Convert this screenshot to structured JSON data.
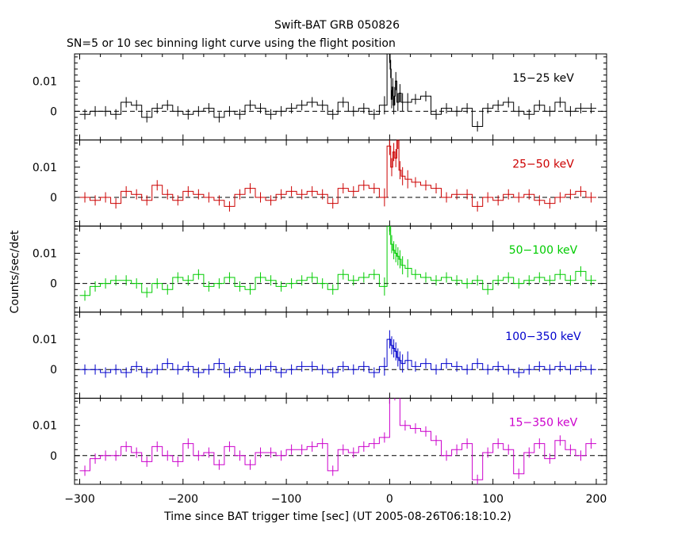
{
  "chart_data": {
    "type": "line",
    "title": "Swift-BAT GRB 050826",
    "subtitle": "SN=5 or 10 sec binning light curve using the flight position",
    "xlabel": "Time since BAT trigger time [sec] (UT 2005-08-26T06:18:10.2)",
    "ylabel": "Counts/sec/det",
    "xlim": [
      -305,
      210
    ],
    "x_ticks": [
      -300,
      -200,
      -100,
      0,
      100,
      200
    ],
    "x_tick_labels": [
      "−300",
      "−200",
      "−100",
      "0",
      "100",
      "200"
    ],
    "ylim": [
      -0.0095,
      0.019
    ],
    "y_ticks": [
      0,
      0.01
    ],
    "y_tick_labels": [
      "0",
      "0.01"
    ],
    "zero_line": "dashed",
    "panels": [
      {
        "name": "15−25 keV",
        "color": "#000000",
        "x": [
          -295,
          -285,
          -275,
          -265,
          -255,
          -245,
          -235,
          -225,
          -215,
          -205,
          -195,
          -185,
          -175,
          -165,
          -155,
          -145,
          -135,
          -125,
          -115,
          -105,
          -95,
          -85,
          -75,
          -65,
          -55,
          -45,
          -35,
          -25,
          -15,
          -5,
          0,
          1,
          2,
          3,
          4,
          5,
          6,
          8,
          10,
          12.5,
          17.5,
          25,
          35,
          45,
          55,
          65,
          75,
          85,
          95,
          105,
          115,
          125,
          135,
          145,
          155,
          165,
          175,
          185,
          195
        ],
        "y": [
          -0.001,
          0,
          0,
          -0.001,
          0.003,
          0.002,
          -0.002,
          0.001,
          0.002,
          0,
          -0.001,
          0,
          0.001,
          -0.002,
          0,
          -0.001,
          0.002,
          0.001,
          -0.001,
          0,
          0.001,
          0.002,
          0.003,
          0.002,
          -0.001,
          0.003,
          0,
          0.001,
          -0.001,
          0.002,
          0.019,
          0.014,
          0.004,
          0.008,
          0.002,
          0.005,
          0.01,
          0.003,
          0.006,
          0.003,
          0.003,
          0.004,
          0.005,
          -0.001,
          0.001,
          0,
          0.001,
          -0.005,
          0.001,
          0.002,
          0.003,
          0,
          -0.001,
          0.002,
          0,
          0.003,
          0,
          0.001,
          0.001
        ]
      },
      {
        "name": "25−50 keV",
        "color": "#cc0000",
        "x": [
          -295,
          -285,
          -275,
          -265,
          -255,
          -245,
          -235,
          -225,
          -215,
          -205,
          -195,
          -185,
          -175,
          -165,
          -155,
          -145,
          -135,
          -125,
          -115,
          -105,
          -95,
          -85,
          -75,
          -65,
          -55,
          -45,
          -35,
          -25,
          -15,
          -5,
          0,
          2,
          4,
          6,
          8,
          10,
          12.5,
          17.5,
          25,
          35,
          45,
          55,
          65,
          75,
          85,
          95,
          105,
          115,
          125,
          135,
          145,
          155,
          165,
          175,
          185,
          195
        ],
        "y": [
          0,
          -0.001,
          0,
          -0.002,
          0.002,
          0.001,
          -0.001,
          0.004,
          0.001,
          -0.001,
          0.002,
          0.001,
          0,
          -0.001,
          -0.003,
          0.001,
          0.003,
          0,
          -0.001,
          0.001,
          0.002,
          0.001,
          0.002,
          0.001,
          -0.002,
          0.003,
          0.002,
          0.004,
          0.003,
          0,
          0.017,
          0.01,
          0.015,
          0.013,
          0.019,
          0.009,
          0.007,
          0.006,
          0.005,
          0.004,
          0.003,
          0,
          0.001,
          0.001,
          -0.003,
          0,
          -0.001,
          0.001,
          0,
          0.001,
          -0.001,
          -0.002,
          0,
          0.001,
          0.002,
          0
        ]
      },
      {
        "name": "50−100 keV",
        "color": "#00cc00",
        "x": [
          -295,
          -285,
          -275,
          -265,
          -255,
          -245,
          -235,
          -225,
          -215,
          -205,
          -195,
          -185,
          -175,
          -165,
          -155,
          -145,
          -135,
          -125,
          -115,
          -105,
          -95,
          -85,
          -75,
          -65,
          -55,
          -45,
          -35,
          -25,
          -15,
          -5,
          0,
          2,
          4,
          6,
          8,
          10,
          12.5,
          17.5,
          25,
          35,
          45,
          55,
          65,
          75,
          85,
          95,
          105,
          115,
          125,
          135,
          145,
          155,
          165,
          175,
          185,
          195
        ],
        "y": [
          -0.004,
          -0.001,
          0,
          0.001,
          0.001,
          0,
          -0.003,
          0,
          -0.002,
          0.002,
          0.001,
          0.003,
          -0.001,
          0,
          0.002,
          -0.001,
          -0.002,
          0.002,
          0.001,
          -0.001,
          0,
          0.001,
          0.002,
          0,
          -0.002,
          0.003,
          0.001,
          0.002,
          0.003,
          -0.001,
          0.019,
          0.013,
          0.011,
          0.01,
          0.009,
          0.008,
          0.006,
          0.005,
          0.003,
          0.002,
          0.001,
          0.002,
          0.001,
          0,
          0.001,
          -0.002,
          0.001,
          0.002,
          0,
          0.001,
          0.002,
          0.001,
          0.003,
          0.001,
          0.004,
          0.001
        ]
      },
      {
        "name": "100−350 keV",
        "color": "#0000cc",
        "x": [
          -295,
          -285,
          -275,
          -265,
          -255,
          -245,
          -235,
          -225,
          -215,
          -205,
          -195,
          -185,
          -175,
          -165,
          -155,
          -145,
          -135,
          -125,
          -115,
          -105,
          -95,
          -85,
          -75,
          -65,
          -55,
          -45,
          -35,
          -25,
          -15,
          -5,
          0,
          2,
          4,
          6,
          8,
          10,
          12.5,
          17.5,
          25,
          35,
          45,
          55,
          65,
          75,
          85,
          95,
          105,
          115,
          125,
          135,
          145,
          155,
          165,
          175,
          185,
          195
        ],
        "y": [
          0,
          0,
          -0.001,
          0,
          -0.001,
          0.001,
          -0.001,
          0,
          0.002,
          0,
          0.001,
          -0.001,
          0,
          0.002,
          -0.001,
          0.001,
          -0.001,
          0,
          0.001,
          -0.001,
          0,
          0.001,
          0.001,
          0,
          -0.001,
          0.001,
          0,
          0.001,
          -0.001,
          0.001,
          0.01,
          0.008,
          0.007,
          0.006,
          0.004,
          0.003,
          0.002,
          0.003,
          0.001,
          0.002,
          0,
          0.002,
          0.001,
          0,
          0.002,
          0,
          0.001,
          0,
          -0.001,
          0,
          0.001,
          0,
          0.001,
          0,
          0.001,
          0
        ]
      },
      {
        "name": "15−350 keV",
        "color": "#cc00cc",
        "x": [
          -295,
          -285,
          -275,
          -265,
          -255,
          -245,
          -235,
          -225,
          -215,
          -205,
          -195,
          -185,
          -175,
          -165,
          -155,
          -145,
          -135,
          -125,
          -115,
          -105,
          -95,
          -85,
          -75,
          -65,
          -55,
          -45,
          -35,
          -25,
          -15,
          -5,
          5,
          15,
          25,
          35,
          45,
          55,
          65,
          75,
          85,
          95,
          105,
          115,
          125,
          135,
          145,
          155,
          165,
          175,
          185,
          195
        ],
        "y": [
          -0.005,
          -0.001,
          0,
          0,
          0.003,
          0.001,
          -0.002,
          0.003,
          0,
          -0.002,
          0.004,
          0,
          0.001,
          -0.003,
          0.003,
          0,
          -0.003,
          0.001,
          0.001,
          0,
          0.002,
          0.002,
          0.003,
          0.004,
          -0.005,
          0.002,
          0.001,
          0.003,
          0.004,
          0.006,
          0.02,
          0.01,
          0.009,
          0.008,
          0.005,
          0,
          0.002,
          0.004,
          -0.008,
          0.001,
          0.004,
          0.002,
          -0.006,
          0.001,
          0.004,
          -0.001,
          0.005,
          0.002,
          0,
          0.004
        ]
      }
    ]
  }
}
